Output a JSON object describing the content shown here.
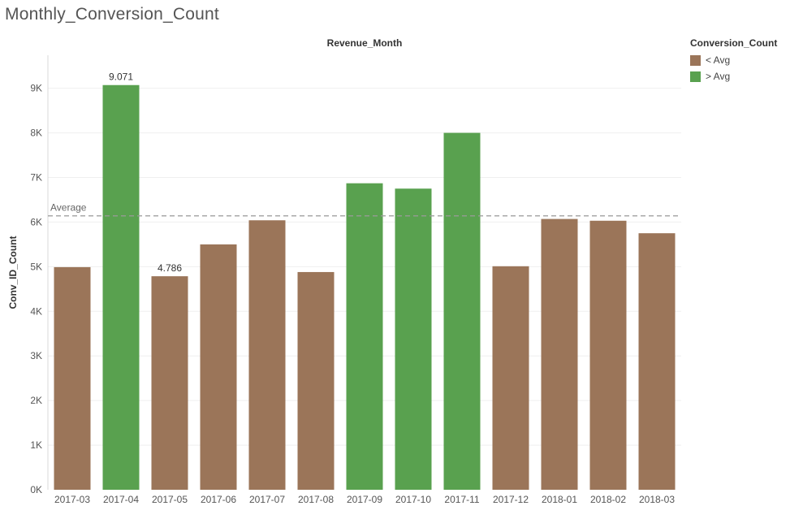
{
  "page_title": "Monthly_Conversion_Count",
  "legend": {
    "title": "Conversion_Count",
    "items": [
      {
        "label": "< Avg",
        "color": "#9b7559"
      },
      {
        "label": "> Avg",
        "color": "#59a14f"
      }
    ]
  },
  "chart_data": {
    "type": "bar",
    "title": "Monthly_Conversion_Count",
    "x_header": "Revenue_Month",
    "ylabel": "Conv_ID_Count",
    "ylim": [
      0,
      10000
    ],
    "y_ticks": [
      0,
      1000,
      2000,
      3000,
      4000,
      5000,
      6000,
      7000,
      8000,
      9000
    ],
    "y_tick_labels": [
      "0K",
      "1K",
      "2K",
      "3K",
      "4K",
      "5K",
      "6K",
      "7K",
      "8K",
      "9K"
    ],
    "categories": [
      "2017-03",
      "2017-04",
      "2017-05",
      "2017-06",
      "2017-07",
      "2017-08",
      "2017-09",
      "2017-10",
      "2017-11",
      "2017-12",
      "2018-01",
      "2018-02",
      "2018-03"
    ],
    "values": [
      4990,
      9071,
      4786,
      5500,
      6040,
      4880,
      6870,
      6750,
      8000,
      5010,
      6070,
      6030,
      5750
    ],
    "groups": [
      "< Avg",
      "> Avg",
      "< Avg",
      "< Avg",
      "< Avg",
      "< Avg",
      "> Avg",
      "> Avg",
      "> Avg",
      "< Avg",
      "< Avg",
      "< Avg",
      "< Avg"
    ],
    "data_labels": [
      {
        "index": 1,
        "text": "9.071"
      },
      {
        "index": 2,
        "text": "4.786"
      }
    ],
    "reference_line": {
      "label": "Average",
      "value": 6140
    },
    "colors": {
      "< Avg": "#9b7559",
      "> Avg": "#59a14f"
    },
    "grid": true,
    "legend_position": "right"
  }
}
